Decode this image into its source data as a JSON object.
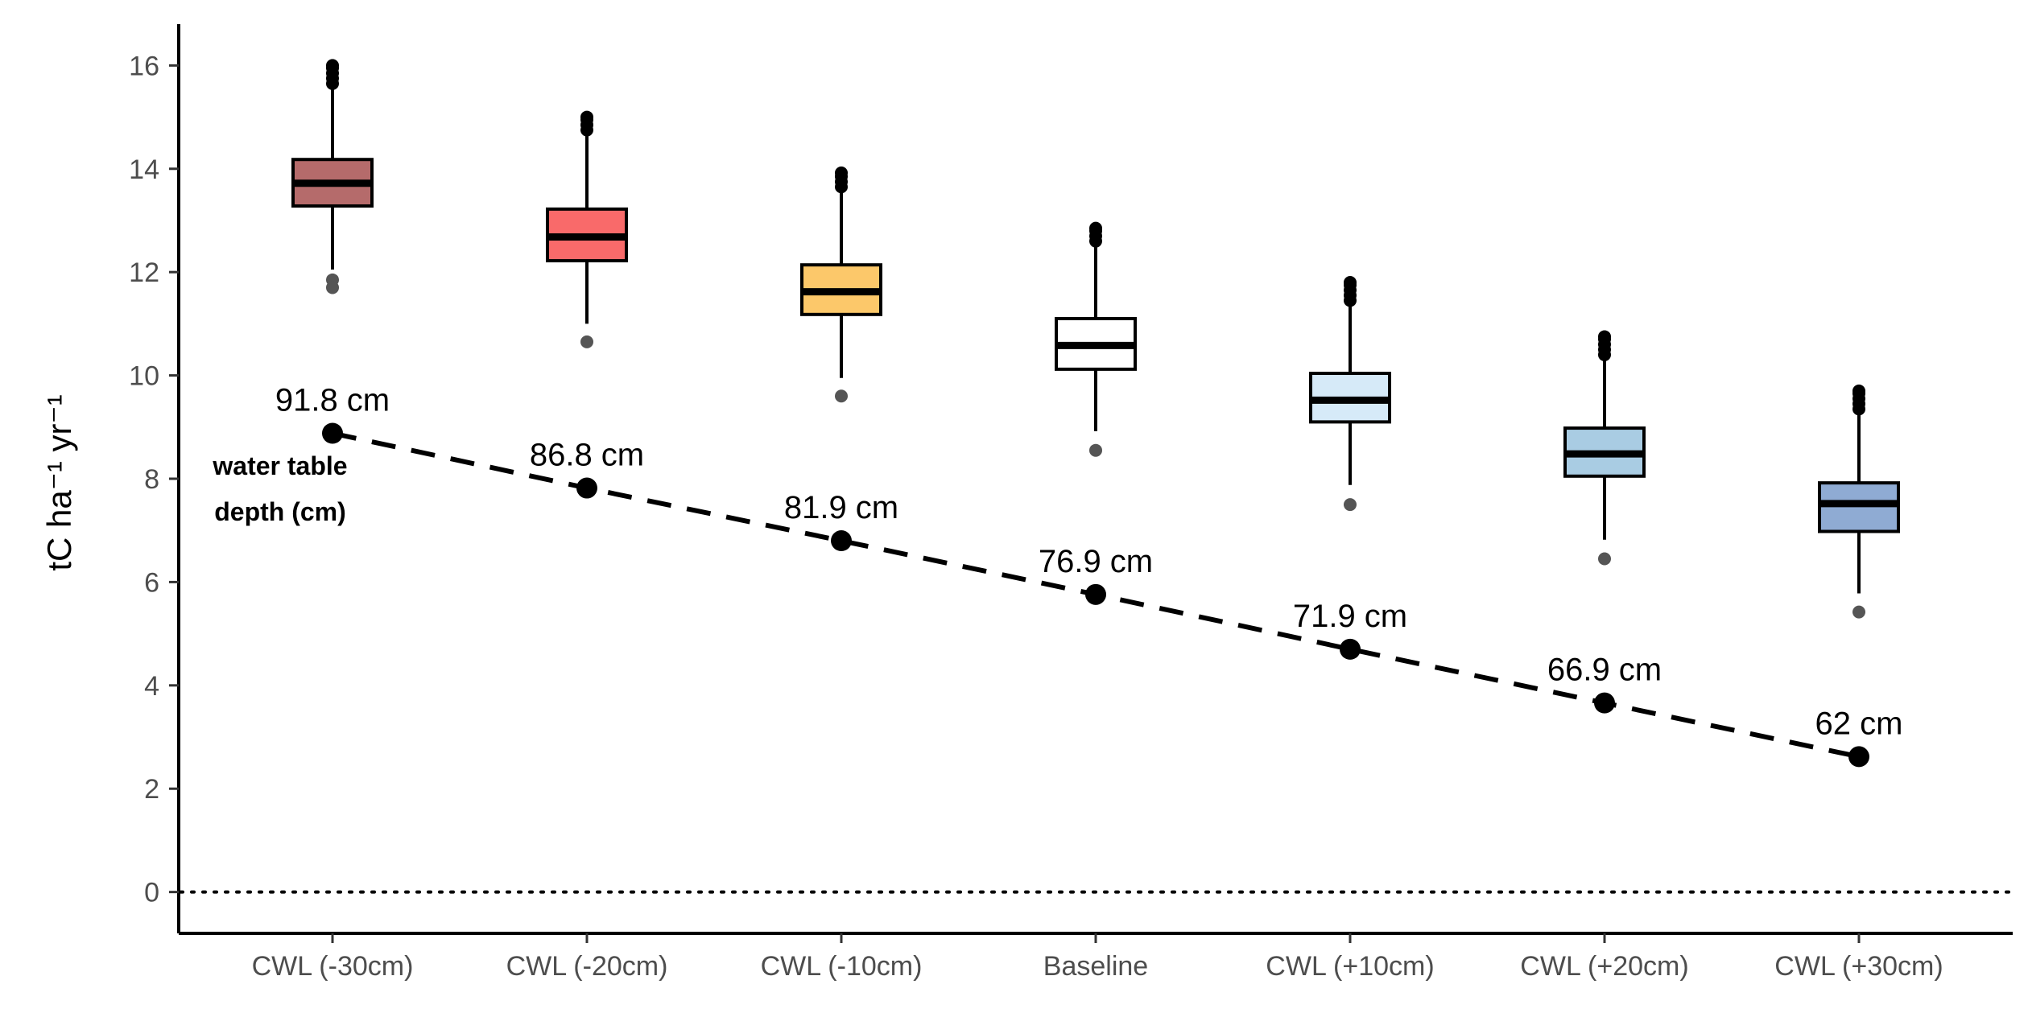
{
  "chart_data": {
    "type": "box",
    "categories": [
      "CWL (-30cm)",
      "CWL (-20cm)",
      "CWL (-10cm)",
      "Baseline",
      "CWL (+10cm)",
      "CWL (+20cm)",
      "CWL (+30cm)"
    ],
    "ylabel": "tC ha⁻¹ yr⁻¹",
    "ylim": [
      -0.8,
      16.8
    ],
    "yticks": [
      0,
      2,
      4,
      6,
      8,
      10,
      12,
      14,
      16
    ],
    "reference_line": {
      "y": 0,
      "style": "dotted"
    },
    "boxes": [
      {
        "category": "CWL (-30cm)",
        "q1": 13.28,
        "median": 13.72,
        "q3": 14.18,
        "whisker_low": 12.05,
        "whisker_high": 15.55,
        "outliers_high": [
          15.65,
          15.75,
          15.85,
          15.95,
          16.0
        ],
        "outliers_low": [
          11.85,
          11.7
        ],
        "fill": "#b56b6b"
      },
      {
        "category": "CWL (-20cm)",
        "q1": 12.22,
        "median": 12.68,
        "q3": 13.22,
        "whisker_low": 11.0,
        "whisker_high": 14.7,
        "outliers_high": [
          14.75,
          14.85,
          14.95,
          15.0
        ],
        "outliers_low": [
          10.65
        ],
        "fill": "#f96a6a"
      },
      {
        "category": "CWL (-10cm)",
        "q1": 11.18,
        "median": 11.62,
        "q3": 12.14,
        "whisker_low": 9.95,
        "whisker_high": 13.6,
        "outliers_high": [
          13.65,
          13.75,
          13.85,
          13.92
        ],
        "outliers_low": [
          9.6
        ],
        "fill": "#fcc86a"
      },
      {
        "category": "Baseline",
        "q1": 10.12,
        "median": 10.58,
        "q3": 11.1,
        "whisker_low": 8.92,
        "whisker_high": 12.55,
        "outliers_high": [
          12.6,
          12.7,
          12.8,
          12.85
        ],
        "outliers_low": [
          8.55
        ],
        "fill": "#ffffff"
      },
      {
        "category": "CWL (+10cm)",
        "q1": 9.1,
        "median": 9.52,
        "q3": 10.04,
        "whisker_low": 7.88,
        "whisker_high": 11.4,
        "outliers_high": [
          11.45,
          11.55,
          11.65,
          11.75,
          11.8
        ],
        "outliers_low": [
          7.5
        ],
        "fill": "#d6eaf8"
      },
      {
        "category": "CWL (+20cm)",
        "q1": 8.05,
        "median": 8.48,
        "q3": 8.98,
        "whisker_low": 6.82,
        "whisker_high": 10.35,
        "outliers_high": [
          10.4,
          10.5,
          10.6,
          10.7,
          10.75
        ],
        "outliers_low": [
          6.45
        ],
        "fill": "#a9cce3"
      },
      {
        "category": "CWL (+30cm)",
        "q1": 6.98,
        "median": 7.52,
        "q3": 7.92,
        "whisker_low": 5.78,
        "whisker_high": 9.28,
        "outliers_high": [
          9.35,
          9.45,
          9.55,
          9.65,
          9.7
        ],
        "outliers_low": [
          5.42
        ],
        "fill": "#8fabd3"
      }
    ],
    "depth_line": {
      "style": "dashed",
      "values": [
        8.88,
        7.82,
        6.8,
        5.76,
        4.7,
        3.66,
        2.62
      ],
      "labels": [
        "91.8 cm",
        "86.8 cm",
        "81.9 cm",
        "76.9 cm",
        "71.9 cm",
        "66.9 cm",
        "62 cm"
      ]
    },
    "annotation": {
      "line1": "water table",
      "line2": "depth (cm)"
    }
  }
}
